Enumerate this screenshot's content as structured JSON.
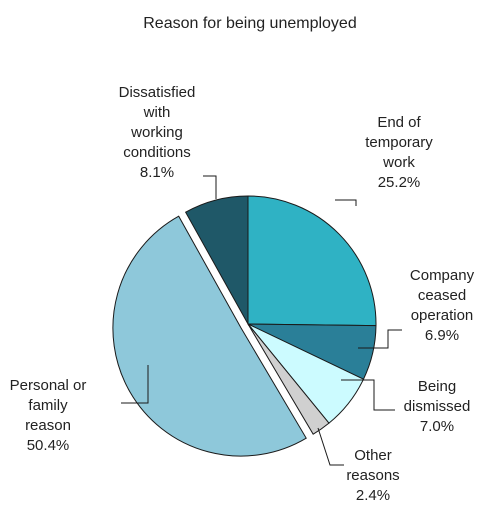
{
  "chart_data": {
    "type": "pie",
    "title": "Reason for being unemployed",
    "start_angle_deg": 0,
    "direction": "clockwise",
    "slices": [
      {
        "label": [
          "End of",
          "temporary",
          "work"
        ],
        "value": 25.2,
        "value_text": "25.2%",
        "color": "#2fb2c4"
      },
      {
        "label": [
          "Company",
          "ceased",
          "operation"
        ],
        "value": 6.9,
        "value_text": "6.9%",
        "color": "#2a7f98"
      },
      {
        "label": [
          "Being",
          "dismissed"
        ],
        "value": 7.0,
        "value_text": "7.0%",
        "color": "#ccfbff"
      },
      {
        "label": [
          "Other",
          "reasons"
        ],
        "value": 2.4,
        "value_text": "2.4%",
        "color": "#d0d0d0"
      },
      {
        "label": [
          "Personal or",
          "family",
          "reason"
        ],
        "value": 50.4,
        "value_text": "50.4%",
        "color": "#8ec8da",
        "exploded": true
      },
      {
        "label": [
          "Dissatisfied",
          "with",
          "working",
          "conditions"
        ],
        "value": 8.1,
        "value_text": "8.1%",
        "color": "#1f5868"
      }
    ]
  }
}
